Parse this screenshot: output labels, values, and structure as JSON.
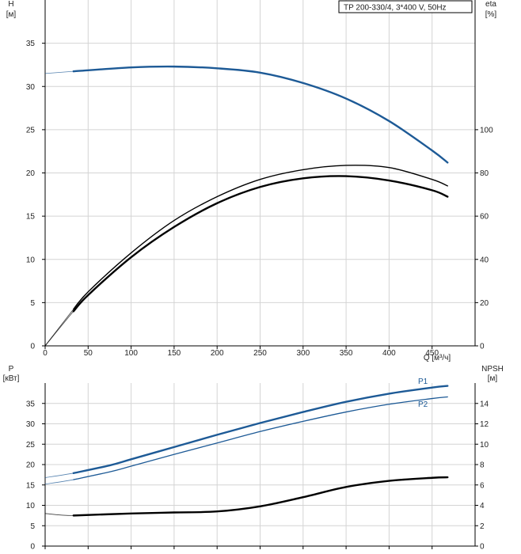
{
  "legend_label": "TP 200-330/4, 3*400 V, 50Hz",
  "colors": {
    "blue": "#1d5a96",
    "black": "#000000",
    "grid": "#d4d4d4"
  },
  "chart_data": [
    {
      "type": "line",
      "x": {
        "label": "Q [м³/ч]",
        "range": [
          0,
          500
        ],
        "ticks": [
          0,
          50,
          100,
          150,
          200,
          250,
          300,
          350,
          400,
          450
        ]
      },
      "y_left": {
        "label": "H",
        "unit": "[м]",
        "range": [
          0,
          40
        ],
        "ticks": [
          0,
          5,
          10,
          15,
          20,
          25,
          30,
          35
        ]
      },
      "y_right": {
        "label": "eta",
        "unit": "[%]",
        "range": [
          0,
          160
        ],
        "ticks": [
          0,
          20,
          40,
          60,
          80,
          100
        ]
      },
      "grid": true,
      "series": [
        {
          "axis": "left",
          "color": "#1d5a96",
          "points": [
            [
              0,
              31.5
            ],
            [
              33,
              31.75
            ],
            [
              100,
              32.2
            ],
            [
              150,
              32.3
            ],
            [
              200,
              32.1
            ],
            [
              250,
              31.6
            ],
            [
              300,
              30.4
            ],
            [
              350,
              28.6
            ],
            [
              400,
              26.0
            ],
            [
              450,
              22.6
            ],
            [
              468,
              21.2
            ]
          ]
        },
        {
          "axis": "right",
          "color": "#000000",
          "points": [
            [
              0,
              0
            ],
            [
              33,
              17
            ],
            [
              50,
              25
            ],
            [
              100,
              43
            ],
            [
              150,
              58
            ],
            [
              200,
              69
            ],
            [
              250,
              77
            ],
            [
              300,
              81.5
            ],
            [
              350,
              83.5
            ],
            [
              400,
              82.5
            ],
            [
              450,
              77
            ],
            [
              468,
              74
            ]
          ]
        },
        {
          "axis": "right",
          "color": "#000000",
          "points": [
            [
              0,
              0
            ],
            [
              33,
              16
            ],
            [
              50,
              23.5
            ],
            [
              100,
              41
            ],
            [
              150,
              55
            ],
            [
              200,
              66
            ],
            [
              250,
              73.5
            ],
            [
              300,
              77.5
            ],
            [
              350,
              78.5
            ],
            [
              400,
              76.5
            ],
            [
              450,
              72
            ],
            [
              468,
              69
            ]
          ]
        }
      ]
    },
    {
      "type": "line",
      "x": {
        "range": [
          0,
          500
        ],
        "ticks": [
          0,
          50,
          100,
          150,
          200,
          250,
          300,
          350,
          400,
          450
        ]
      },
      "y_left": {
        "label": "P",
        "unit": "[кВт]",
        "range": [
          0,
          40
        ],
        "ticks": [
          0,
          5,
          10,
          15,
          20,
          25,
          30,
          35
        ]
      },
      "y_right": {
        "label": "NPSH",
        "unit": "[м]",
        "range": [
          0,
          16
        ],
        "ticks": [
          0,
          2,
          4,
          6,
          8,
          10,
          12,
          14
        ]
      },
      "grid": true,
      "series": [
        {
          "name": "P1",
          "axis": "left",
          "color": "#1d5a96",
          "points": [
            [
              0,
              16.8
            ],
            [
              33,
              17.9
            ],
            [
              75,
              19.8
            ],
            [
              100,
              21.3
            ],
            [
              150,
              24.3
            ],
            [
              200,
              27.3
            ],
            [
              250,
              30.2
            ],
            [
              300,
              32.9
            ],
            [
              350,
              35.4
            ],
            [
              400,
              37.4
            ],
            [
              450,
              38.9
            ],
            [
              468,
              39.3
            ]
          ]
        },
        {
          "name": "P2",
          "axis": "left",
          "color": "#1d5a96",
          "points": [
            [
              0,
              15.2
            ],
            [
              33,
              16.3
            ],
            [
              75,
              18.2
            ],
            [
              100,
              19.6
            ],
            [
              150,
              22.5
            ],
            [
              200,
              25.3
            ],
            [
              250,
              28.1
            ],
            [
              300,
              30.6
            ],
            [
              350,
              32.9
            ],
            [
              400,
              34.8
            ],
            [
              450,
              36.2
            ],
            [
              468,
              36.6
            ]
          ]
        },
        {
          "axis": "right",
          "color": "#000000",
          "points": [
            [
              0,
              3.2
            ],
            [
              33,
              3.0
            ],
            [
              100,
              3.2
            ],
            [
              150,
              3.3
            ],
            [
              200,
              3.4
            ],
            [
              250,
              3.9
            ],
            [
              300,
              4.8
            ],
            [
              350,
              5.8
            ],
            [
              400,
              6.4
            ],
            [
              450,
              6.7
            ],
            [
              468,
              6.75
            ]
          ]
        }
      ]
    }
  ]
}
